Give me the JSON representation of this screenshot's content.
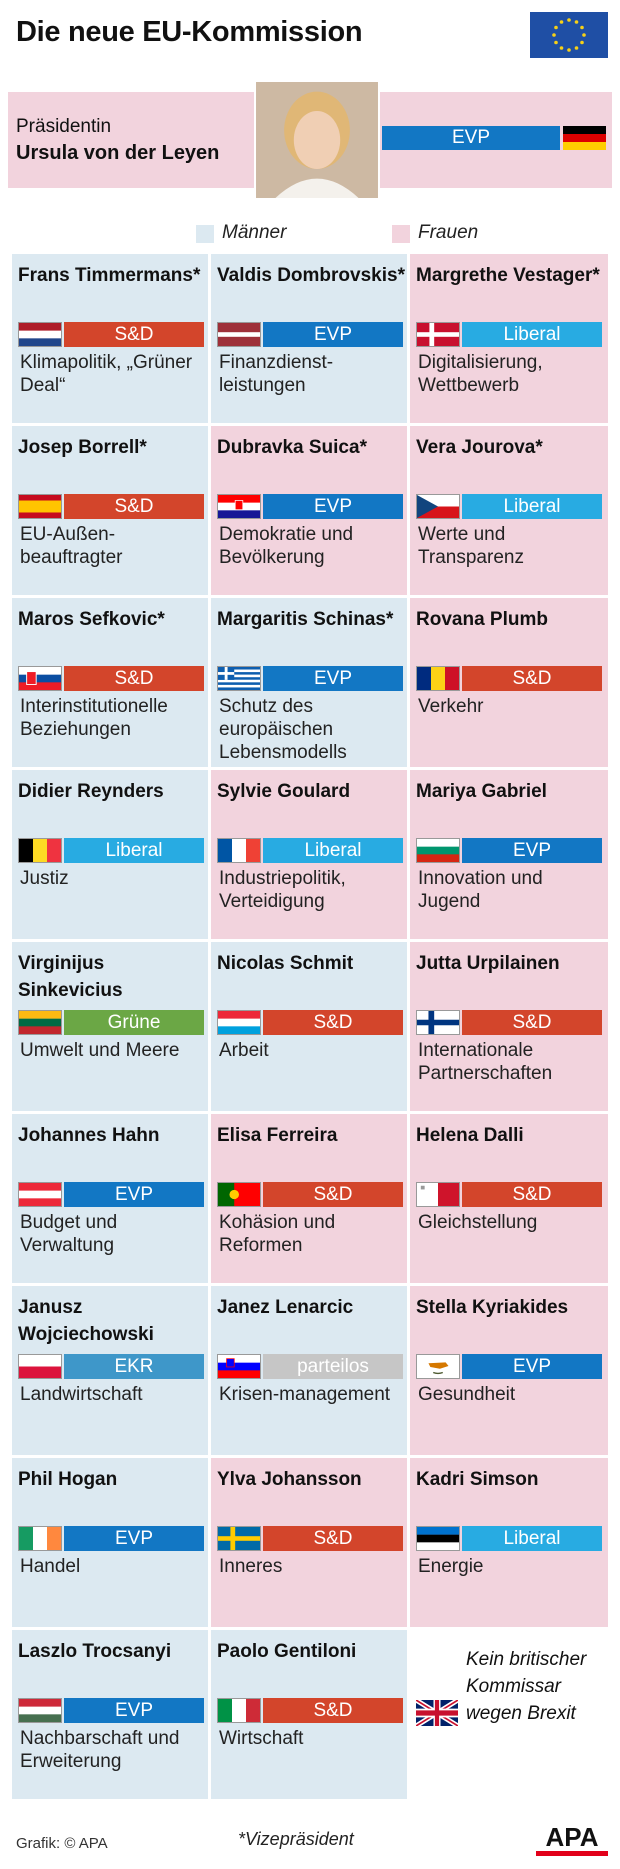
{
  "title": "Die neue EU-Kommission",
  "president": {
    "role": "Präsidentin",
    "name": "Ursula von der Leyen",
    "party": "EVP",
    "flag": "de"
  },
  "legend": {
    "men_label": "Männer",
    "women_label": "Frauen",
    "men_color": "#dce9f1",
    "women_color": "#f2d3dd"
  },
  "party_colors": {
    "S&D": "#d3452b",
    "EVP": "#1277c4",
    "Liberal": "#28abe2",
    "Grüne": "#6ba745",
    "EKR": "#3e97c9",
    "parteilos": "#c6c6c6"
  },
  "commissioners": [
    {
      "name": "Frans Timmermans*",
      "party": "S&D",
      "portfolio": "Klimapolitik, „Grüner Deal“",
      "gender": "m",
      "flag": "nl"
    },
    {
      "name": "Valdis Dombrovskis*",
      "party": "EVP",
      "portfolio": "Finanzdienst-leistungen",
      "gender": "m",
      "flag": "lv"
    },
    {
      "name": "Margrethe Vestager*",
      "party": "Liberal",
      "portfolio": "Digitalisierung, Wettbewerb",
      "gender": "f",
      "flag": "dk"
    },
    {
      "name": "Josep Borrell*",
      "party": "S&D",
      "portfolio": "EU-Außen-beauftragter",
      "gender": "m",
      "flag": "es"
    },
    {
      "name": "Dubravka Suica*",
      "party": "EVP",
      "portfolio": "Demokratie und Bevölkerung",
      "gender": "f",
      "flag": "hr"
    },
    {
      "name": "Vera Jourova*",
      "party": "Liberal",
      "portfolio": "Werte und Transparenz",
      "gender": "f",
      "flag": "cz"
    },
    {
      "name": "Maros Sefkovic*",
      "party": "S&D",
      "portfolio": "Interinstitutionelle Beziehungen",
      "gender": "m",
      "flag": "sk"
    },
    {
      "name": "Margaritis Schinas*",
      "party": "EVP",
      "portfolio": "Schutz des europäischen Lebensmodells",
      "gender": "m",
      "flag": "gr"
    },
    {
      "name": "Rovana Plumb",
      "party": "S&D",
      "portfolio": "Verkehr",
      "gender": "f",
      "flag": "ro"
    },
    {
      "name": "Didier Reynders",
      "party": "Liberal",
      "portfolio": "Justiz",
      "gender": "m",
      "flag": "be"
    },
    {
      "name": "Sylvie Goulard",
      "party": "Liberal",
      "portfolio": "Industriepolitik, Verteidigung",
      "gender": "f",
      "flag": "fr"
    },
    {
      "name": "Mariya Gabriel",
      "party": "EVP",
      "portfolio": "Innovation und Jugend",
      "gender": "f",
      "flag": "bg"
    },
    {
      "name": "Virginijus Sinkevicius",
      "party": "Grüne",
      "portfolio": "Umwelt und Meere",
      "gender": "m",
      "flag": "lt"
    },
    {
      "name": "Nicolas Schmit",
      "party": "S&D",
      "portfolio": "Arbeit",
      "gender": "m",
      "flag": "lu"
    },
    {
      "name": "Jutta Urpilainen",
      "party": "S&D",
      "portfolio": "Internationale Partnerschaften",
      "gender": "f",
      "flag": "fi"
    },
    {
      "name": "Johannes Hahn",
      "party": "EVP",
      "portfolio": "Budget und Verwaltung",
      "gender": "m",
      "flag": "at"
    },
    {
      "name": "Elisa Ferreira",
      "party": "S&D",
      "portfolio": "Kohäsion und Reformen",
      "gender": "f",
      "flag": "pt"
    },
    {
      "name": "Helena Dalli",
      "party": "S&D",
      "portfolio": "Gleichstellung",
      "gender": "f",
      "flag": "mt"
    },
    {
      "name": "Janusz Wojciechowski",
      "party": "EKR",
      "portfolio": "Landwirtschaft",
      "gender": "m",
      "flag": "pl"
    },
    {
      "name": "Janez Lenarcic",
      "party": "parteilos",
      "portfolio": "Krisen-management",
      "gender": "m",
      "flag": "si"
    },
    {
      "name": "Stella Kyriakides",
      "party": "EVP",
      "portfolio": "Gesundheit",
      "gender": "f",
      "flag": "cy"
    },
    {
      "name": "Phil Hogan",
      "party": "EVP",
      "portfolio": "Handel",
      "gender": "m",
      "flag": "ie"
    },
    {
      "name": "Ylva Johansson",
      "party": "S&D",
      "portfolio": "Inneres",
      "gender": "f",
      "flag": "se"
    },
    {
      "name": "Kadri Simson",
      "party": "Liberal",
      "portfolio": "Energie",
      "gender": "f",
      "flag": "ee"
    },
    {
      "name": "Laszlo Trocsanyi",
      "party": "EVP",
      "portfolio": "Nachbarschaft und Erweiterung",
      "gender": "m",
      "flag": "hu"
    },
    {
      "name": "Paolo Gentiloni",
      "party": "S&D",
      "portfolio": "Wirtschaft",
      "gender": "m",
      "flag": "it"
    }
  ],
  "brexit_note": "Kein britischer Kommissar wegen Brexit",
  "footer": {
    "source": "Grafik: © APA",
    "vp_note": "*Vizepräsident",
    "logo": "APA"
  }
}
